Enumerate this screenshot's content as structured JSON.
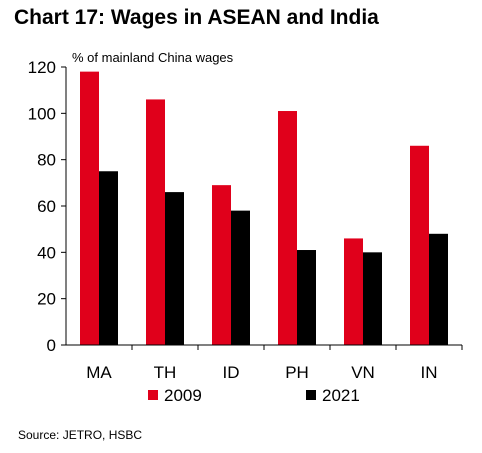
{
  "chart_data": {
    "type": "bar",
    "title": "Chart 17: Wages in ASEAN and India",
    "ylabel": "% of mainland China wages",
    "xlabel": "",
    "categories": [
      "MA",
      "TH",
      "ID",
      "PH",
      "VN",
      "IN"
    ],
    "series": [
      {
        "name": "2009",
        "values": [
          118,
          106,
          69,
          101,
          46,
          86
        ],
        "color": "#e0001b"
      },
      {
        "name": "2021",
        "values": [
          75,
          66,
          58,
          41,
          40,
          48
        ],
        "color": "#000000"
      }
    ],
    "ylim": [
      0,
      120
    ],
    "yticks": [
      0,
      20,
      40,
      60,
      80,
      100,
      120
    ],
    "grid": false,
    "legend_position": "bottom",
    "source": "Source: JETRO, HSBC"
  }
}
